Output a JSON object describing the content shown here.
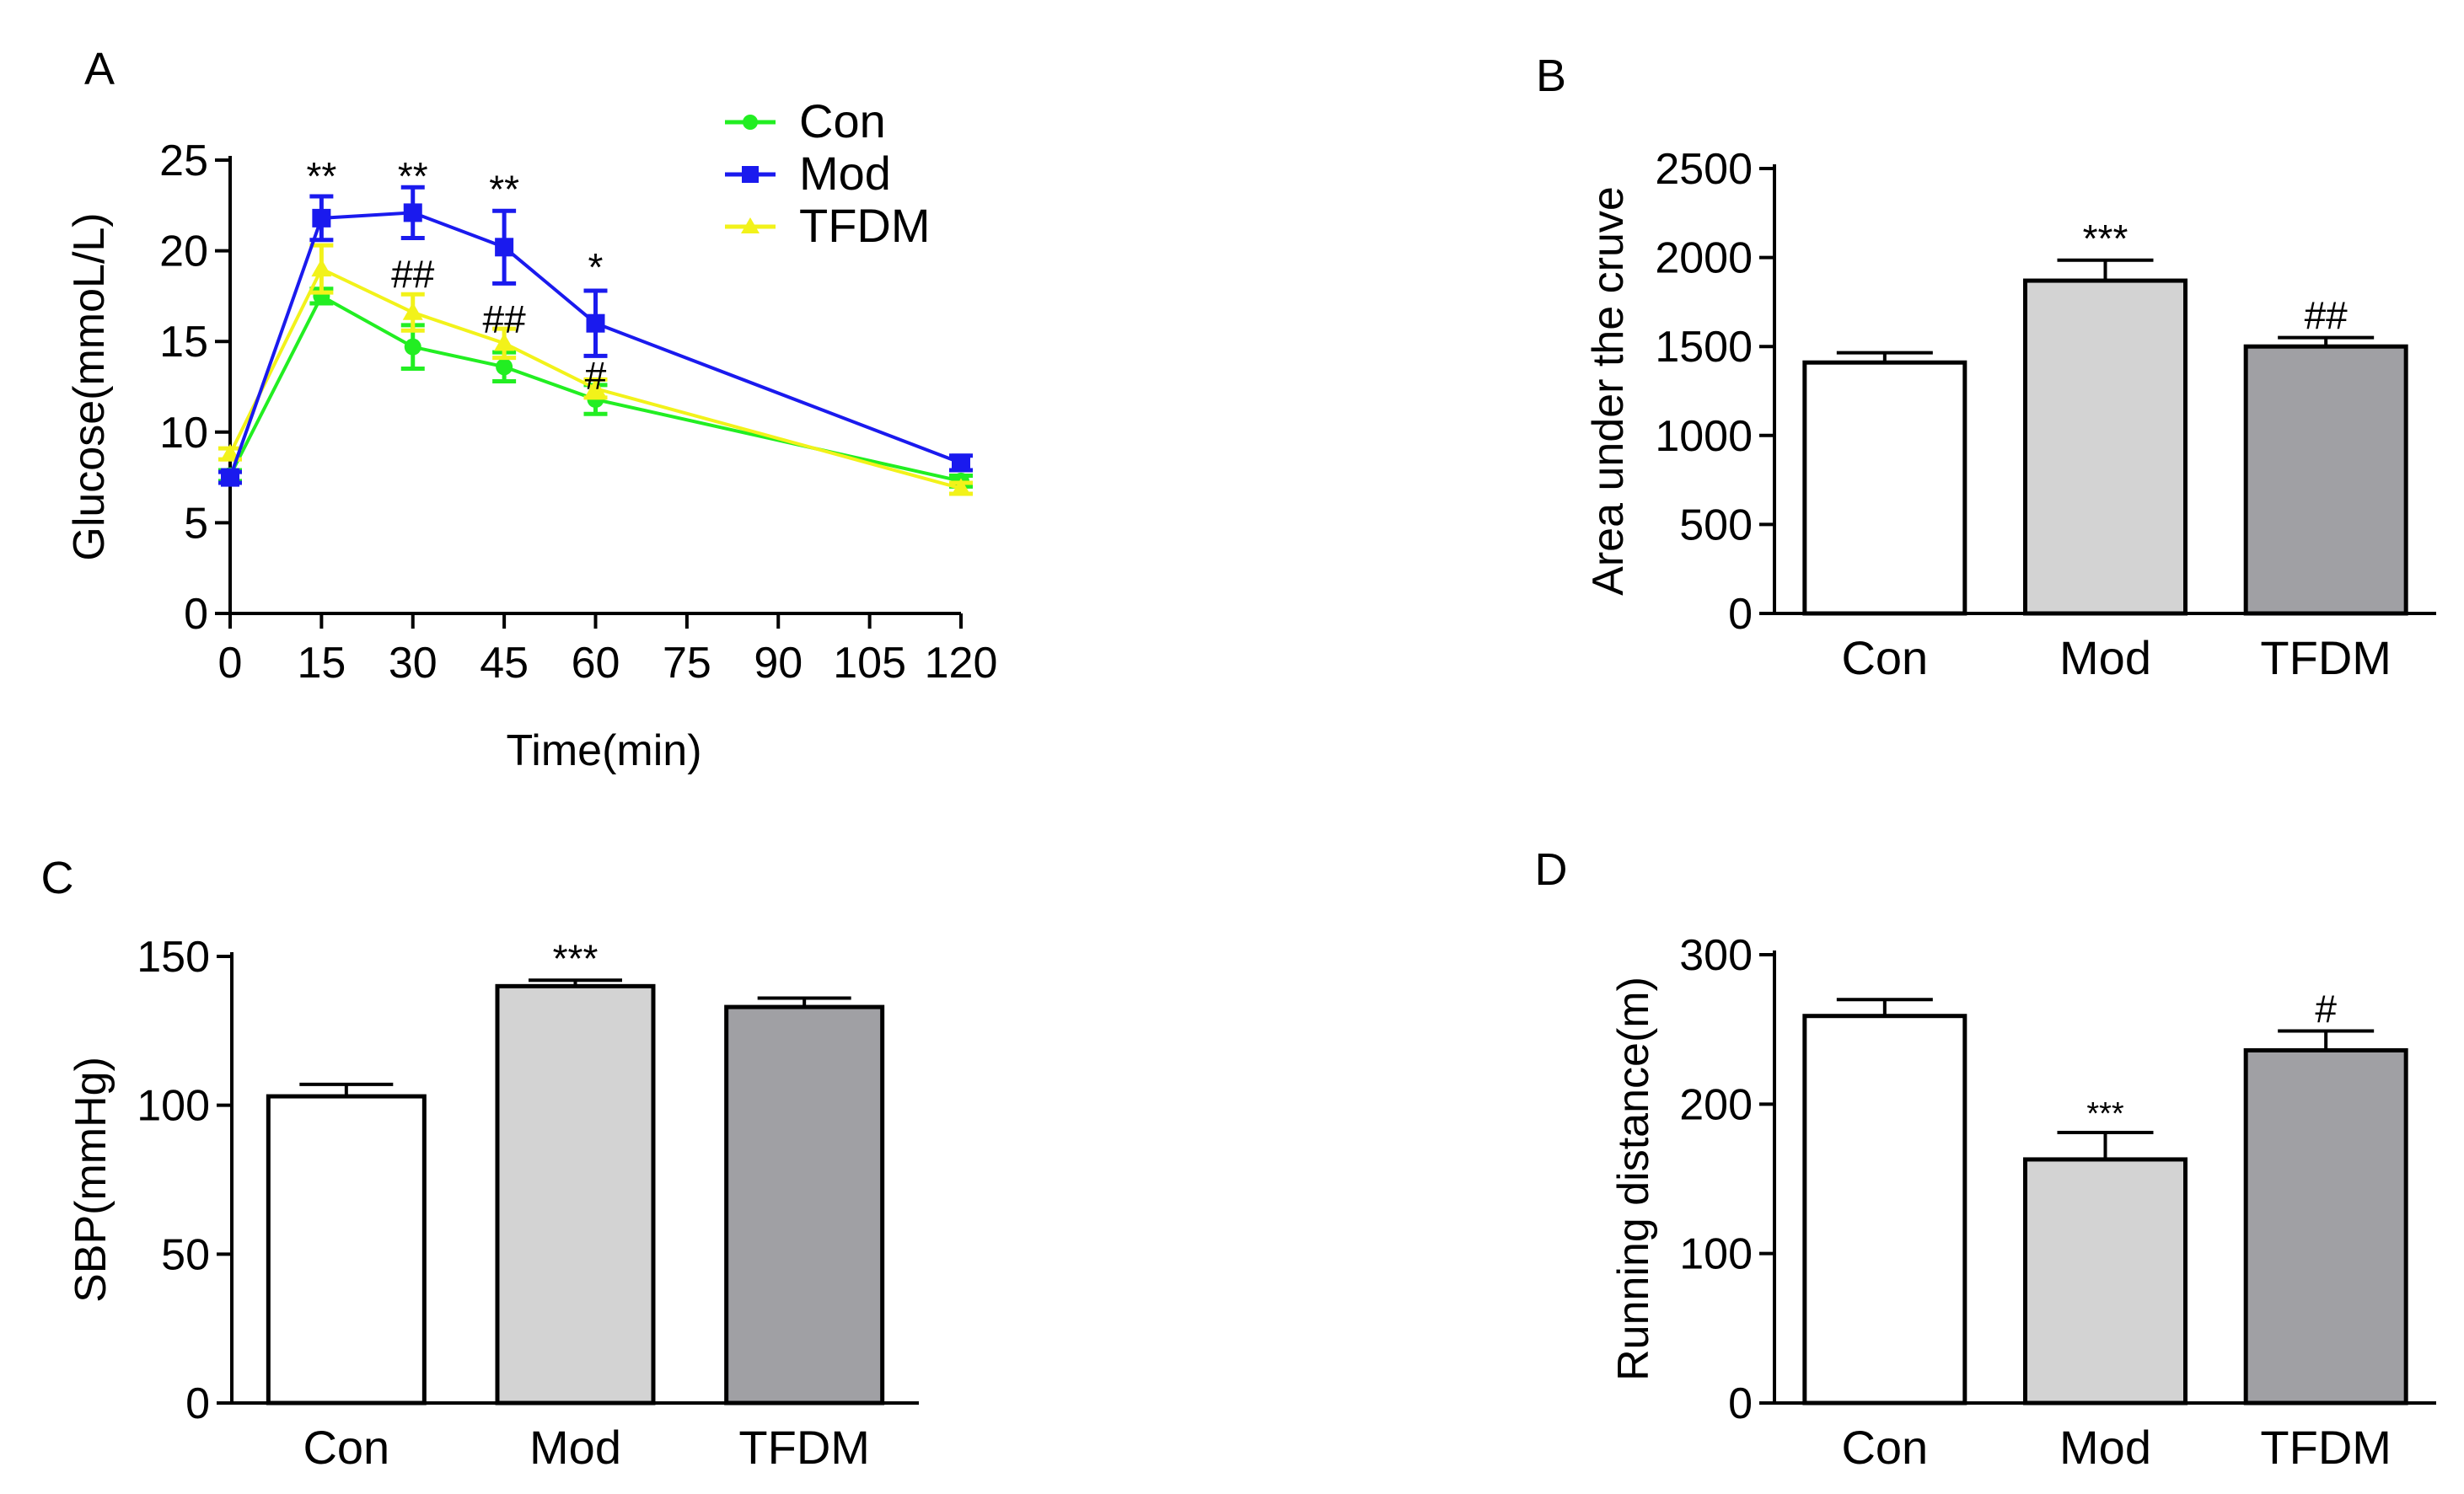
{
  "chart_data": [
    {
      "panel": "A",
      "type": "line",
      "xlabel": "Time(min)",
      "ylabel": "Glucose(mmoL/L)",
      "xlim": [
        0,
        120
      ],
      "ylim": [
        0,
        25
      ],
      "x_ticks": [
        0,
        15,
        30,
        45,
        60,
        75,
        90,
        105,
        120
      ],
      "x_tick_labels": [
        "0",
        "15",
        "30",
        "45",
        "60",
        "75",
        "90",
        "105",
        "120"
      ],
      "y_ticks": [
        0,
        5,
        10,
        15,
        20,
        25
      ],
      "y_tick_labels": [
        "0",
        "5",
        "10",
        "15",
        "20",
        "25"
      ],
      "x": [
        0,
        15,
        30,
        45,
        60,
        120
      ],
      "series": [
        {
          "name": "Con",
          "color": "#22ee22",
          "marker": "circle",
          "values": [
            7.6,
            17.5,
            14.7,
            13.6,
            11.8,
            7.3
          ],
          "errors": [
            0.3,
            0.4,
            1.2,
            0.8,
            0.8,
            0.3
          ]
        },
        {
          "name": "Mod",
          "color": "#1a1aee",
          "marker": "square",
          "values": [
            7.5,
            21.8,
            22.1,
            20.2,
            16.0,
            8.3
          ],
          "errors": [
            0.3,
            1.2,
            1.4,
            2.0,
            1.8,
            0.4
          ]
        },
        {
          "name": "TFDM",
          "color": "#f2f21a",
          "marker": "triangle",
          "values": [
            8.8,
            19.0,
            16.6,
            14.9,
            12.4,
            6.9
          ],
          "errors": [
            0.3,
            1.3,
            1.0,
            0.8,
            0.5,
            0.3
          ]
        }
      ],
      "annotations": [
        {
          "text": "**",
          "x": 15,
          "y": 24.2
        },
        {
          "text": "**",
          "x": 30,
          "y": 24.2
        },
        {
          "text": "**",
          "x": 45,
          "y": 23.5
        },
        {
          "text": "*",
          "x": 60,
          "y": 19.2
        },
        {
          "text": "##",
          "x": 30,
          "y": 18.8
        },
        {
          "text": "##",
          "x": 45,
          "y": 16.3
        },
        {
          "text": "#",
          "x": 60,
          "y": 13.2
        }
      ]
    },
    {
      "panel": "B",
      "type": "bar",
      "ylabel": "Area under the cruve",
      "categories": [
        "Con",
        "Mod",
        "TFDM"
      ],
      "values": [
        1410,
        1870,
        1500
      ],
      "errors": [
        55,
        115,
        50
      ],
      "colors": [
        "#ffffff",
        "#d3d3d3",
        "#a0a0a4"
      ],
      "ylim": [
        0,
        2500
      ],
      "y_ticks": [
        0,
        500,
        1000,
        1500,
        2000,
        2500
      ],
      "y_tick_labels": [
        "0",
        "500",
        "1000",
        "1500",
        "2000",
        "2500"
      ],
      "annotations": [
        "",
        "***",
        "##"
      ]
    },
    {
      "panel": "C",
      "type": "bar",
      "ylabel": "SBP(mmHg)",
      "categories": [
        "Con",
        "Mod",
        "TFDM"
      ],
      "values": [
        103,
        140,
        133
      ],
      "errors": [
        4,
        2,
        3
      ],
      "colors": [
        "#ffffff",
        "#d3d3d3",
        "#a0a0a4"
      ],
      "ylim": [
        0,
        150
      ],
      "y_ticks": [
        0,
        50,
        100,
        150
      ],
      "y_tick_labels": [
        "0",
        "50",
        "100",
        "150"
      ],
      "annotations": [
        "",
        "***",
        ""
      ]
    },
    {
      "panel": "D",
      "type": "bar",
      "ylabel": "Running distance(m)",
      "categories": [
        "Con",
        "Mod",
        "TFDM"
      ],
      "values": [
        259,
        163,
        236
      ],
      "errors": [
        11,
        18,
        13
      ],
      "colors": [
        "#ffffff",
        "#d3d3d3",
        "#a0a0a4"
      ],
      "ylim": [
        0,
        300
      ],
      "y_ticks": [
        0,
        100,
        200,
        300
      ],
      "y_tick_labels": [
        "0",
        "100",
        "200",
        "300"
      ],
      "annotations": [
        "",
        "***",
        "#"
      ]
    }
  ]
}
